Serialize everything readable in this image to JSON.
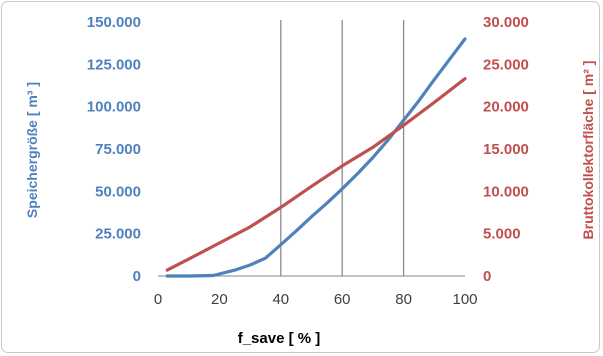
{
  "chart_data": {
    "type": "line",
    "xlabel": "f_save [ % ]",
    "xlim": [
      0,
      100
    ],
    "x_ticks": [
      "0",
      "20",
      "40",
      "60",
      "80",
      "100"
    ],
    "y_left": {
      "label": "Speichergröße [ m³ ]",
      "lim": [
        0,
        150000
      ],
      "ticks": [
        "0",
        "25.000",
        "50.000",
        "75.000",
        "100.000",
        "125.000",
        "150.000"
      ]
    },
    "y_right": {
      "label": "Bruttokollektorfläche [ m² ]",
      "lim": [
        0,
        30000
      ],
      "ticks": [
        "0",
        "5.000",
        "10.000",
        "15.000",
        "20.000",
        "25.000",
        "30.000"
      ]
    },
    "grid": "vertical",
    "vertical_gridlines_at": [
      40,
      60,
      80
    ],
    "colors": {
      "left_axis": "#4f81bd",
      "right_axis": "#c0504d"
    },
    "series": [
      {
        "axis": "left",
        "color": "#4f81bd",
        "x": [
          3,
          10,
          18,
          25,
          30,
          35,
          40,
          45,
          50,
          55,
          60,
          65,
          70,
          75,
          80,
          85,
          90,
          95,
          100
        ],
        "values": [
          0,
          0,
          300,
          3500,
          6500,
          10500,
          18500,
          26500,
          35000,
          43000,
          51500,
          60500,
          70000,
          80500,
          92000,
          103500,
          116000,
          128000,
          140000
        ]
      },
      {
        "axis": "right",
        "color": "#c0504d",
        "x": [
          3,
          10,
          20,
          30,
          40,
          50,
          60,
          70,
          80,
          90,
          100
        ],
        "values": [
          700,
          2000,
          3900,
          5800,
          8100,
          10600,
          13000,
          15200,
          17800,
          20500,
          23300
        ]
      }
    ]
  }
}
